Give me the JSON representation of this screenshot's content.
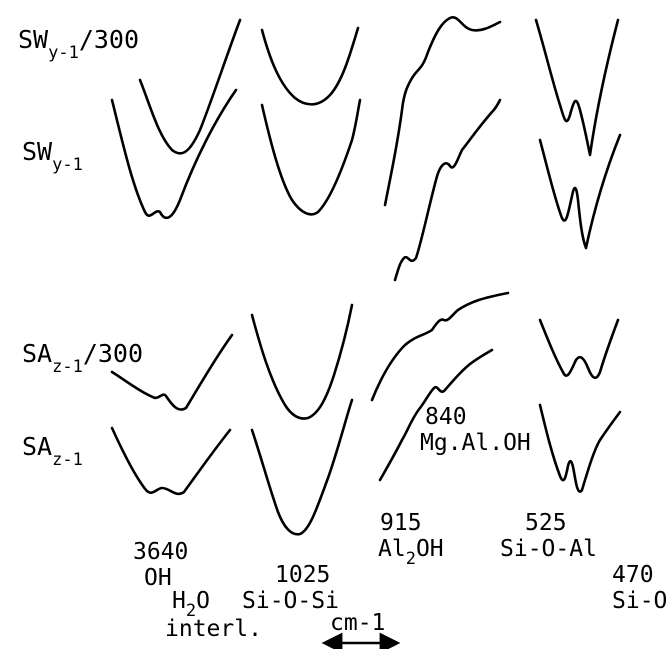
{
  "chart_data": {
    "type": "line",
    "title": "",
    "xlabel": "cm-1",
    "ylabel": "",
    "samples": [
      {
        "main": "SW",
        "subscript": "y-1",
        "suffix": "/300"
      },
      {
        "main": "SW",
        "subscript": "y-1",
        "suffix": ""
      },
      {
        "main": "SA",
        "subscript": "z-1",
        "suffix": "/300"
      },
      {
        "main": "SA",
        "subscript": "z-1",
        "suffix": ""
      }
    ],
    "bands": [
      {
        "wavenumber": "3640",
        "assignment": "OH"
      },
      {
        "wavenumber": "",
        "assignment_main": "H",
        "assignment_sub": "2",
        "assignment_rest": "O",
        "assignment_line2": "interl."
      },
      {
        "wavenumber": "1025",
        "assignment": "Si-O-Si"
      },
      {
        "wavenumber": "915",
        "assignment_main": "Al",
        "assignment_sub": "2",
        "assignment_rest": "OH"
      },
      {
        "wavenumber": "840",
        "assignment": "Mg.Al.OH"
      },
      {
        "wavenumber": "525",
        "assignment": "Si-O-Al"
      },
      {
        "wavenumber": "470",
        "assignment": "Si-O"
      }
    ],
    "scale_bar_label": "cm-1"
  }
}
